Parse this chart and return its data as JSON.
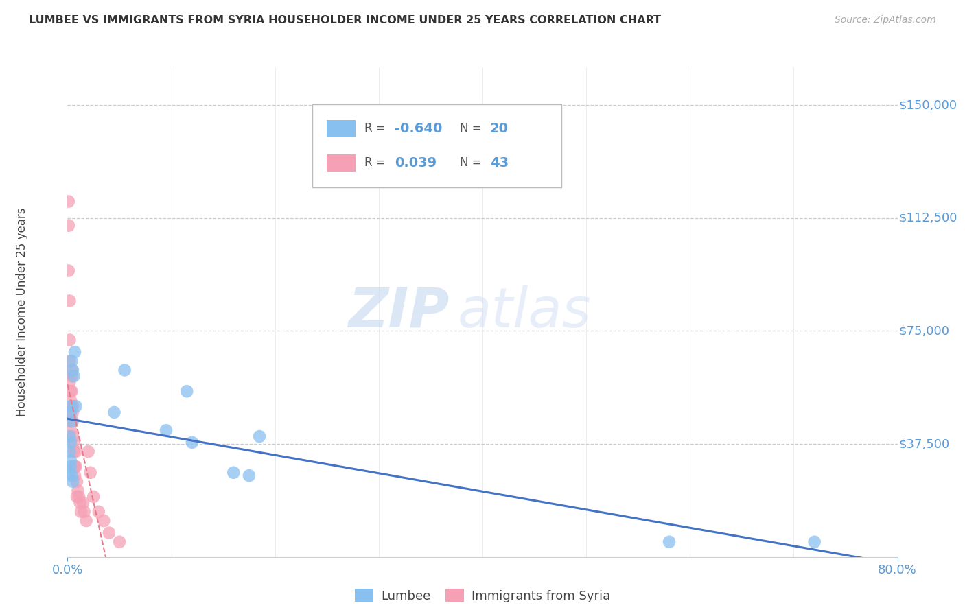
{
  "title": "LUMBEE VS IMMIGRANTS FROM SYRIA HOUSEHOLDER INCOME UNDER 25 YEARS CORRELATION CHART",
  "source": "Source: ZipAtlas.com",
  "accent_color": "#5b9bd5",
  "ylabel": "Householder Income Under 25 years",
  "x_tick_labels": [
    "0.0%",
    "80.0%"
  ],
  "y_tick_labels": [
    "$37,500",
    "$75,000",
    "$112,500",
    "$150,000"
  ],
  "y_tick_values": [
    37500,
    75000,
    112500,
    150000
  ],
  "watermark_zip": "ZIP",
  "watermark_atlas": "atlas",
  "lumbee_color": "#88c0f0",
  "syria_color": "#f5a0b5",
  "lumbee_line_color": "#4472c4",
  "syria_line_color": "#e87a8a",
  "lumbee_scatter_x": [
    0.003,
    0.004,
    0.005,
    0.006,
    0.007,
    0.003,
    0.004,
    0.008,
    0.002,
    0.003,
    0.002,
    0.003,
    0.003,
    0.002,
    0.004,
    0.005,
    0.045,
    0.055,
    0.095,
    0.115,
    0.12,
    0.16,
    0.175,
    0.185,
    0.58,
    0.72
  ],
  "lumbee_scatter_y": [
    50000,
    65000,
    62000,
    60000,
    68000,
    48000,
    45000,
    50000,
    40000,
    38000,
    35000,
    32000,
    30000,
    28000,
    27000,
    25000,
    48000,
    62000,
    42000,
    55000,
    38000,
    28000,
    27000,
    40000,
    5000,
    5000
  ],
  "syria_scatter_x": [
    0.001,
    0.001,
    0.001,
    0.002,
    0.002,
    0.002,
    0.002,
    0.003,
    0.003,
    0.003,
    0.003,
    0.003,
    0.004,
    0.004,
    0.004,
    0.004,
    0.005,
    0.005,
    0.005,
    0.005,
    0.006,
    0.006,
    0.006,
    0.007,
    0.007,
    0.008,
    0.008,
    0.009,
    0.009,
    0.01,
    0.011,
    0.012,
    0.013,
    0.015,
    0.016,
    0.018,
    0.02,
    0.022,
    0.025,
    0.03,
    0.035,
    0.04,
    0.05
  ],
  "syria_scatter_y": [
    118000,
    110000,
    95000,
    85000,
    72000,
    65000,
    58000,
    55000,
    52000,
    48000,
    45000,
    42000,
    62000,
    60000,
    55000,
    50000,
    50000,
    48000,
    45000,
    40000,
    38000,
    35000,
    30000,
    30000,
    27000,
    35000,
    30000,
    25000,
    20000,
    22000,
    20000,
    18000,
    15000,
    18000,
    15000,
    12000,
    35000,
    28000,
    20000,
    15000,
    12000,
    8000,
    5000
  ],
  "xlim": [
    0.0,
    0.8
  ],
  "ylim": [
    0,
    162500
  ],
  "background_color": "#ffffff",
  "grid_color": "#cccccc"
}
